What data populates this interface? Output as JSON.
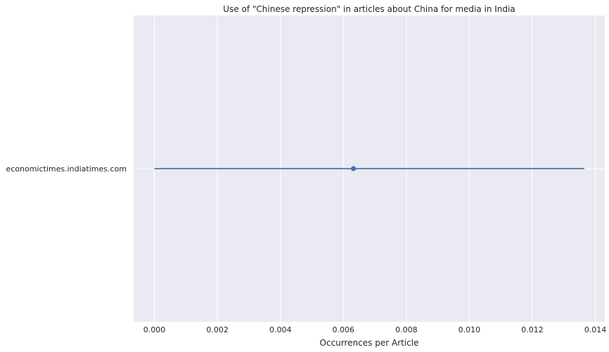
{
  "chart_data": {
    "type": "scatter",
    "title": "Use of \"Chinese repression\" in articles about China for media in India",
    "xlabel": "Occurrences per Article",
    "ylabel": "",
    "xlim": [
      -0.00066,
      0.0143
    ],
    "x_ticks": [
      0.0,
      0.002,
      0.004,
      0.006,
      0.008,
      0.01,
      0.012,
      0.014
    ],
    "x_tick_labels": [
      "0.000",
      "0.002",
      "0.004",
      "0.006",
      "0.008",
      "0.010",
      "0.012",
      "0.014"
    ],
    "categories": [
      "economictimes.indiatimes.com"
    ],
    "points": [
      {
        "category": "economictimes.indiatimes.com",
        "x": 0.00632,
        "ci_low": 0.0,
        "ci_high": 0.01365
      }
    ],
    "grid": true,
    "legend": "none"
  },
  "colors": {
    "plot_background": "#eaeaf2",
    "grid": "#ffffff",
    "series": "#4c72b0",
    "text": "#262626"
  }
}
